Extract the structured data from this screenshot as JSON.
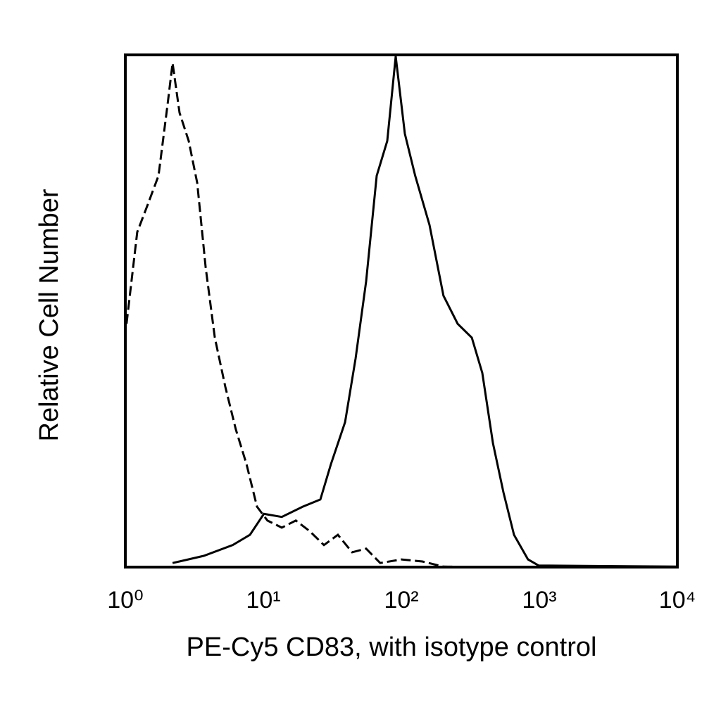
{
  "chart_data": {
    "type": "line",
    "xlabel": "PE-Cy5 CD83, with isotype control",
    "ylabel": "Relative Cell Number",
    "xscale": "log",
    "xlim": [
      1,
      10000
    ],
    "xticks": [
      {
        "value": 1,
        "label": "10⁰"
      },
      {
        "value": 10,
        "label": "10¹"
      },
      {
        "value": 100,
        "label": "10²"
      },
      {
        "value": 1000,
        "label": "10³"
      },
      {
        "value": 10000,
        "label": "10⁴"
      }
    ],
    "ylim": [
      0,
      100
    ],
    "series": [
      {
        "color": "#000000",
        "dashed": false,
        "x": [
          2.2,
          3.7,
          6.0,
          8.0,
          10.1,
          13.6,
          19.3,
          25.9,
          30.9,
          39.1,
          46.6,
          55.6,
          66.3,
          79.1,
          91.0,
          106,
          126,
          160,
          202,
          256,
          324,
          386,
          461,
          549,
          655,
          828,
          988,
          9800
        ],
        "values": [
          0.8,
          2.2,
          4.3,
          6.3,
          10.4,
          9.8,
          11.8,
          13.2,
          20.1,
          28.3,
          40.7,
          55.8,
          76.4,
          83.2,
          99.7,
          84.6,
          76.4,
          66.8,
          53.0,
          47.5,
          44.8,
          37.9,
          24.2,
          14.6,
          6.3,
          1.5,
          0.3,
          0.1
        ]
      },
      {
        "color": "#000000",
        "dashed": true,
        "x": [
          1.02,
          1.22,
          1.46,
          1.74,
          2.02,
          2.2,
          2.47,
          2.88,
          3.32,
          3.82,
          4.45,
          5.3,
          6.32,
          7.55,
          9.0,
          10.7,
          13.6,
          17.2,
          21.7,
          27.5,
          34.7,
          44.0,
          55.6,
          70.3,
          100,
          142,
          202,
          461,
          9800
        ],
        "values": [
          47.5,
          65.4,
          70.9,
          76.4,
          90.1,
          98.4,
          88.7,
          83.2,
          75.0,
          58.5,
          44.8,
          35.2,
          26.9,
          20.1,
          11.8,
          9.1,
          7.7,
          9.1,
          7.0,
          4.3,
          6.3,
          2.9,
          3.6,
          0.8,
          1.5,
          1.1,
          0.1,
          0,
          0
        ]
      }
    ]
  }
}
